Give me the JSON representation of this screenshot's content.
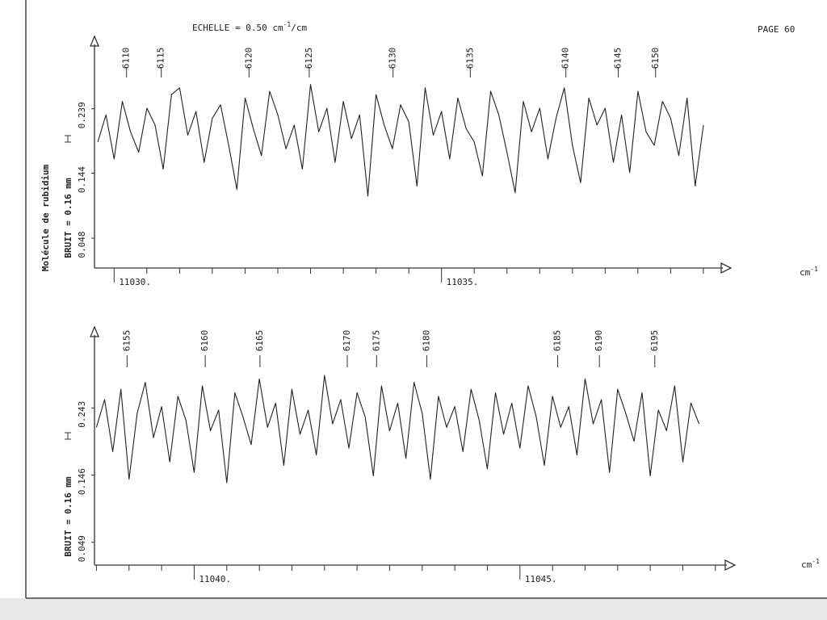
{
  "header": {
    "scale_label": "ECHELLE = 0.50 cm",
    "scale_exp": "-1",
    "scale_unit": "/cm",
    "page": "PAGE 60"
  },
  "chart_data": [
    {
      "type": "line",
      "color": "#222222",
      "side_labels": [
        "Molécule de rubidium",
        "BRUIT = 0.16 mm"
      ],
      "x_unit": "cm",
      "x_unit_exp": "-1",
      "xlim": [
        11029.7,
        11039.42
      ],
      "ylim": [
        0.004,
        0.346
      ],
      "xticks": [
        {
          "value": 11030,
          "label": "11030."
        },
        {
          "value": 11035,
          "label": "11035."
        }
      ],
      "xminorticks": [
        11030.5,
        11031,
        11031.5,
        11032,
        11032.5,
        11033,
        11033.5,
        11034,
        11034.5,
        11035.5,
        11036,
        11036.5,
        11037,
        11037.5,
        11038,
        11038.5,
        11039
      ],
      "yticks": [
        0.239,
        0.144,
        0.048
      ],
      "line_labels": [
        {
          "label": "6110",
          "x": 11030.19
        },
        {
          "label": "6115",
          "x": 11030.72
        },
        {
          "label": "6120",
          "x": 11032.06
        },
        {
          "label": "6125",
          "x": 11032.98
        },
        {
          "label": "6130",
          "x": 11034.26
        },
        {
          "label": "6135",
          "x": 11035.44
        },
        {
          "label": "6140",
          "x": 11036.9
        },
        {
          "label": "6145",
          "x": 11037.7
        },
        {
          "label": "6150",
          "x": 11038.27
        }
      ],
      "x": [
        11029.75,
        11029.875,
        11030,
        11030.125,
        11030.25,
        11030.375,
        11030.5,
        11030.625,
        11030.75,
        11030.875,
        11031,
        11031.125,
        11031.25,
        11031.375,
        11031.5,
        11031.625,
        11031.75,
        11031.875,
        11032,
        11032.125,
        11032.25,
        11032.375,
        11032.5,
        11032.625,
        11032.75,
        11032.875,
        11033,
        11033.125,
        11033.25,
        11033.375,
        11033.5,
        11033.625,
        11033.75,
        11033.875,
        11034,
        11034.125,
        11034.25,
        11034.375,
        11034.5,
        11034.625,
        11034.75,
        11034.875,
        11035,
        11035.125,
        11035.25,
        11035.375,
        11035.5,
        11035.625,
        11035.75,
        11035.875,
        11036,
        11036.125,
        11036.25,
        11036.375,
        11036.5,
        11036.625,
        11036.75,
        11036.875,
        11037,
        11037.125,
        11037.25,
        11037.375,
        11037.5,
        11037.625,
        11037.75,
        11037.875,
        11038,
        11038.125,
        11038.25,
        11038.375,
        11038.5,
        11038.625,
        11038.75,
        11038.875,
        11039
      ],
      "values": [
        0.19,
        0.23,
        0.165,
        0.25,
        0.205,
        0.175,
        0.24,
        0.215,
        0.15,
        0.26,
        0.27,
        0.2,
        0.235,
        0.16,
        0.225,
        0.245,
        0.185,
        0.12,
        0.255,
        0.21,
        0.17,
        0.265,
        0.23,
        0.18,
        0.215,
        0.15,
        0.275,
        0.205,
        0.24,
        0.16,
        0.25,
        0.195,
        0.23,
        0.11,
        0.26,
        0.215,
        0.18,
        0.245,
        0.22,
        0.125,
        0.27,
        0.2,
        0.235,
        0.165,
        0.255,
        0.21,
        0.19,
        0.14,
        0.265,
        0.23,
        0.175,
        0.115,
        0.25,
        0.205,
        0.24,
        0.165,
        0.225,
        0.27,
        0.185,
        0.13,
        0.255,
        0.215,
        0.24,
        0.16,
        0.23,
        0.145,
        0.265,
        0.205,
        0.185,
        0.25,
        0.225,
        0.17,
        0.255,
        0.125,
        0.215
      ]
    },
    {
      "type": "line",
      "color": "#222222",
      "side_labels": [
        "BRUIT = 0.16 mm"
      ],
      "x_unit": "cm",
      "x_unit_exp": "-1",
      "xlim": [
        11038.47,
        11048.3
      ],
      "ylim": [
        0.016,
        0.36
      ],
      "xticks": [
        {
          "value": 11040,
          "label": "11040."
        },
        {
          "value": 11045,
          "label": "11045."
        }
      ],
      "xminorticks": [
        11038.5,
        11039,
        11039.5,
        11040.5,
        11041,
        11041.5,
        11042,
        11042.5,
        11043,
        11043.5,
        11044,
        11044.5,
        11045.5,
        11046,
        11046.5,
        11047,
        11047.5,
        11048
      ],
      "yticks": [
        0.243,
        0.146,
        0.049
      ],
      "line_labels": [
        {
          "label": "6155",
          "x": 11038.97
        },
        {
          "label": "6160",
          "x": 11040.17
        },
        {
          "label": "6165",
          "x": 11041.01
        },
        {
          "label": "6170",
          "x": 11042.35
        },
        {
          "label": "6175",
          "x": 11042.8
        },
        {
          "label": "6180",
          "x": 11043.57
        },
        {
          "label": "6185",
          "x": 11045.58
        },
        {
          "label": "6190",
          "x": 11046.22
        },
        {
          "label": "6195",
          "x": 11047.07
        }
      ],
      "x": [
        11038.5,
        11038.625,
        11038.75,
        11038.875,
        11039,
        11039.125,
        11039.25,
        11039.375,
        11039.5,
        11039.625,
        11039.75,
        11039.875,
        11040,
        11040.125,
        11040.25,
        11040.375,
        11040.5,
        11040.625,
        11040.75,
        11040.875,
        11041,
        11041.125,
        11041.25,
        11041.375,
        11041.5,
        11041.625,
        11041.75,
        11041.875,
        11042,
        11042.125,
        11042.25,
        11042.375,
        11042.5,
        11042.625,
        11042.75,
        11042.875,
        11043,
        11043.125,
        11043.25,
        11043.375,
        11043.5,
        11043.625,
        11043.75,
        11043.875,
        11044,
        11044.125,
        11044.25,
        11044.375,
        11044.5,
        11044.625,
        11044.75,
        11044.875,
        11045,
        11045.125,
        11045.25,
        11045.375,
        11045.5,
        11045.625,
        11045.75,
        11045.875,
        11046,
        11046.125,
        11046.25,
        11046.375,
        11046.5,
        11046.625,
        11046.75,
        11046.875,
        11047,
        11047.125,
        11047.25,
        11047.375,
        11047.5,
        11047.625,
        11047.75
      ],
      "values": [
        0.215,
        0.255,
        0.18,
        0.27,
        0.14,
        0.235,
        0.28,
        0.2,
        0.245,
        0.165,
        0.26,
        0.225,
        0.15,
        0.275,
        0.21,
        0.24,
        0.135,
        0.265,
        0.23,
        0.19,
        0.285,
        0.215,
        0.25,
        0.16,
        0.27,
        0.205,
        0.24,
        0.175,
        0.29,
        0.22,
        0.255,
        0.185,
        0.265,
        0.23,
        0.145,
        0.275,
        0.21,
        0.25,
        0.17,
        0.28,
        0.235,
        0.14,
        0.26,
        0.215,
        0.245,
        0.18,
        0.27,
        0.225,
        0.155,
        0.265,
        0.205,
        0.25,
        0.185,
        0.275,
        0.23,
        0.16,
        0.26,
        0.215,
        0.245,
        0.175,
        0.285,
        0.22,
        0.255,
        0.15,
        0.27,
        0.235,
        0.195,
        0.265,
        0.145,
        0.24,
        0.21,
        0.275,
        0.165,
        0.25,
        0.22
      ]
    }
  ]
}
